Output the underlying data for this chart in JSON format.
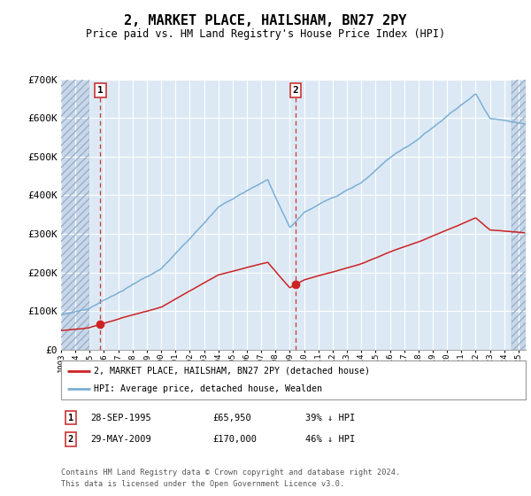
{
  "title": "2, MARKET PLACE, HAILSHAM, BN27 2PY",
  "subtitle": "Price paid vs. HM Land Registry's House Price Index (HPI)",
  "hpi_color": "#7bafd4",
  "price_color": "#cc2222",
  "marker_color": "#cc2222",
  "bg_color": "#dce9f5",
  "grid_color": "#ffffff",
  "ylim": [
    0,
    700000
  ],
  "ytick_labels": [
    "£0",
    "£100K",
    "£200K",
    "£300K",
    "£400K",
    "£500K",
    "£600K",
    "£700K"
  ],
  "ytick_values": [
    0,
    100000,
    200000,
    300000,
    400000,
    500000,
    600000,
    700000
  ],
  "sale1_x": 1995.75,
  "sale1_price": 65950,
  "sale2_x": 2009.41,
  "sale2_price": 170000,
  "legend_line1": "2, MARKET PLACE, HAILSHAM, BN27 2PY (detached house)",
  "legend_line2": "HPI: Average price, detached house, Wealden",
  "table_row1": [
    "1",
    "28-SEP-1995",
    "£65,950",
    "39% ↓ HPI"
  ],
  "table_row2": [
    "2",
    "29-MAY-2009",
    "£170,000",
    "46% ↓ HPI"
  ],
  "footer": "Contains HM Land Registry data © Crown copyright and database right 2024.\nThis data is licensed under the Open Government Licence v3.0.",
  "xmin": 1993.0,
  "xmax": 2025.5,
  "hatch_left_end": 1995.0,
  "hatch_right_start": 2024.5
}
